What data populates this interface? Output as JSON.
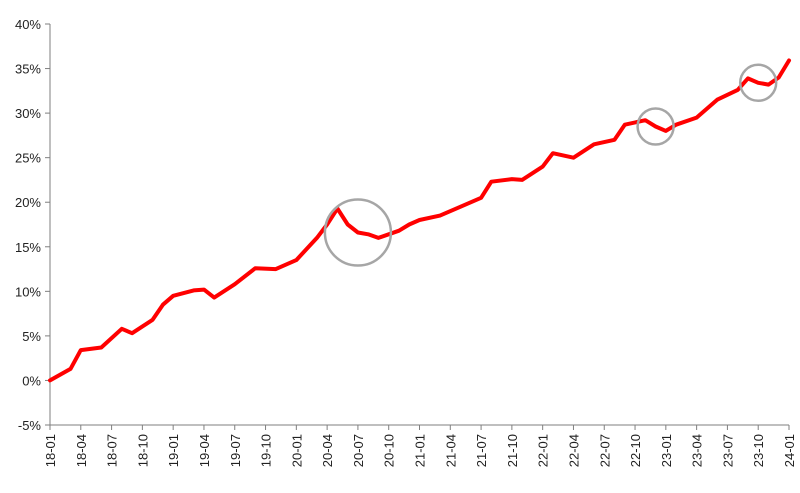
{
  "chart_data": {
    "type": "line",
    "title": "",
    "xlabel": "",
    "ylabel": "",
    "ylim": [
      -5,
      40
    ],
    "y_ticks": [
      -5,
      0,
      5,
      10,
      15,
      20,
      25,
      30,
      35,
      40
    ],
    "y_tick_labels": [
      "-5%",
      "0%",
      "5%",
      "10%",
      "15%",
      "20%",
      "25%",
      "30%",
      "35%",
      "40%"
    ],
    "x_ticks": [
      "18-01",
      "18-04",
      "18-07",
      "18-10",
      "19-01",
      "19-04",
      "19-07",
      "19-10",
      "20-01",
      "20-04",
      "20-07",
      "20-10",
      "21-01",
      "21-04",
      "21-07",
      "21-10",
      "22-01",
      "22-04",
      "22-07",
      "22-10",
      "23-01",
      "23-04",
      "23-07",
      "23-10",
      "24-01"
    ],
    "grid": false,
    "legend": "none",
    "series": [
      {
        "color": "#ff0000",
        "points": [
          [
            "18-01",
            0.0
          ],
          [
            "18-03",
            1.3
          ],
          [
            "18-04",
            3.4
          ],
          [
            "18-06",
            3.7
          ],
          [
            "18-08",
            5.8
          ],
          [
            "18-09",
            5.3
          ],
          [
            "18-11",
            6.8
          ],
          [
            "18-12",
            8.5
          ],
          [
            "19-01",
            9.5
          ],
          [
            "19-03",
            10.1
          ],
          [
            "19-04",
            10.2
          ],
          [
            "19-05",
            9.3
          ],
          [
            "19-07",
            10.8
          ],
          [
            "19-09",
            12.6
          ],
          [
            "19-11",
            12.5
          ],
          [
            "20-01",
            13.5
          ],
          [
            "20-03",
            16.0
          ],
          [
            "20-04",
            17.5
          ],
          [
            "20-05",
            19.3
          ],
          [
            "20-06",
            17.5
          ],
          [
            "20-07",
            16.6
          ],
          [
            "20-08",
            16.4
          ],
          [
            "20-09",
            16.0
          ],
          [
            "20-11",
            16.8
          ],
          [
            "20-12",
            17.5
          ],
          [
            "21-01",
            18.0
          ],
          [
            "21-03",
            18.5
          ],
          [
            "21-05",
            19.5
          ],
          [
            "21-07",
            20.5
          ],
          [
            "21-08",
            22.3
          ],
          [
            "21-10",
            22.6
          ],
          [
            "21-11",
            22.5
          ],
          [
            "22-01",
            24.0
          ],
          [
            "22-02",
            25.5
          ],
          [
            "22-04",
            25.0
          ],
          [
            "22-06",
            26.5
          ],
          [
            "22-08",
            27.0
          ],
          [
            "22-09",
            28.7
          ],
          [
            "22-11",
            29.2
          ],
          [
            "22-12",
            28.5
          ],
          [
            "23-01",
            28.0
          ],
          [
            "23-02",
            28.7
          ],
          [
            "23-04",
            29.5
          ],
          [
            "23-06",
            31.5
          ],
          [
            "23-08",
            32.6
          ],
          [
            "23-09",
            33.9
          ],
          [
            "23-10",
            33.4
          ],
          [
            "23-11",
            33.2
          ],
          [
            "23-12",
            34.0
          ],
          [
            "24-01",
            35.9
          ]
        ]
      }
    ],
    "annotations": [
      {
        "shape": "circle",
        "color": "#a6a6a6",
        "around": "20-07"
      },
      {
        "shape": "circle",
        "color": "#a6a6a6",
        "around": "22-12"
      },
      {
        "shape": "circle",
        "color": "#a6a6a6",
        "around": "23-10"
      }
    ]
  }
}
